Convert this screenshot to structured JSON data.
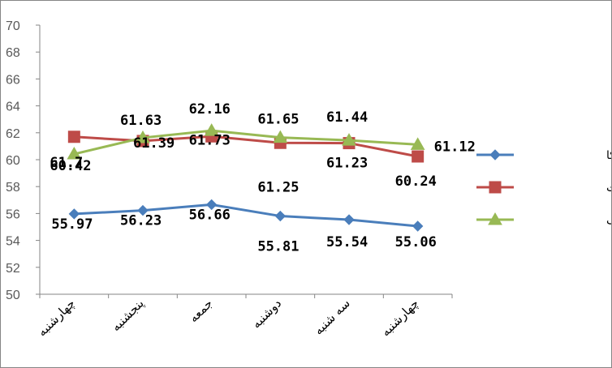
{
  "chart_data": {
    "type": "line",
    "categories": [
      "چهارشنبه",
      "پنجشنبه",
      "جمعه",
      "دوشنبه",
      "سه شنبه",
      "چهارشنبه"
    ],
    "ylim": [
      50,
      70
    ],
    "ytick_step": 2,
    "grid": false,
    "legend_position": "right",
    "series": [
      {
        "name": "نفت خام آمریکا",
        "values": [
          55.97,
          56.23,
          56.66,
          55.81,
          55.54,
          55.06
        ],
        "labels": [
          "55.97",
          "56.23",
          "56.66",
          "55.81",
          "55.54",
          "55.06"
        ],
        "color": "#4A7EBB",
        "marker": "diamond"
      },
      {
        "name": "نفت برنت",
        "values": [
          61.7,
          61.39,
          61.73,
          61.25,
          61.23,
          60.24
        ],
        "labels": [
          "61.7",
          "61.39",
          "61.73",
          "61.25",
          "61.23",
          "60.24"
        ],
        "color": "#BE4B48",
        "marker": "square"
      },
      {
        "name": "نفت اوپک",
        "values": [
          60.42,
          61.63,
          62.16,
          61.65,
          61.44,
          61.12
        ],
        "labels": [
          "60.42",
          "61.63",
          "62.16",
          "61.65",
          "61.44",
          "61.12"
        ],
        "color": "#98B954",
        "marker": "triangle"
      }
    ]
  }
}
